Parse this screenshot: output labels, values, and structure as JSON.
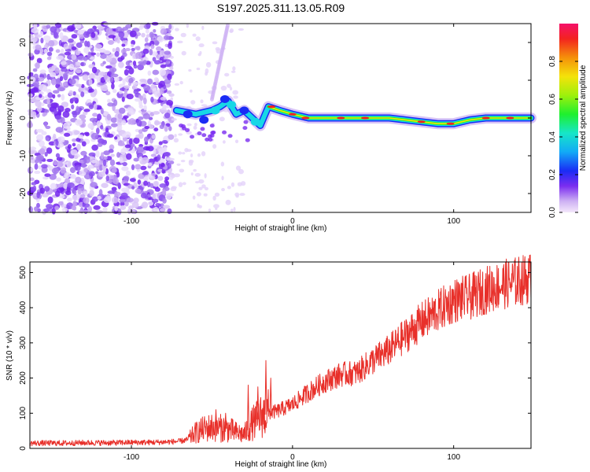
{
  "title": "S197.2025.311.13.05.R09",
  "chart_data": [
    {
      "type": "heatmap",
      "xlabel": "Height of straight line (km)",
      "ylabel": "Frequency (Hz)",
      "xlim": [
        -163,
        148
      ],
      "ylim": [
        -25,
        25
      ],
      "xticks": [
        -100,
        0,
        100
      ],
      "yticks": [
        -20,
        -10,
        0,
        10,
        20
      ],
      "colorbar": {
        "label": "Normalized spectral amplitude",
        "range": [
          0.0,
          1.0
        ],
        "ticks": [
          0.0,
          0.2,
          0.4,
          0.6,
          0.8
        ]
      },
      "features": [
        {
          "name": "noise region",
          "x_range": [
            -163,
            -75
          ],
          "freq_range": [
            -25,
            25
          ],
          "amplitude": 0.1
        },
        {
          "name": "signal trace",
          "freq_path": [
            [
              -72,
              2
            ],
            [
              -60,
              1
            ],
            [
              -50,
              2
            ],
            [
              -45,
              3
            ],
            [
              -40,
              4.5
            ],
            [
              -35,
              1
            ],
            [
              -30,
              2
            ],
            [
              -25,
              0
            ],
            [
              -20,
              -2
            ],
            [
              -15,
              3
            ],
            [
              -8,
              2
            ],
            [
              0,
              1
            ],
            [
              10,
              0
            ],
            [
              30,
              0
            ],
            [
              60,
              0
            ],
            [
              80,
              -1
            ],
            [
              90,
              -1.5
            ],
            [
              100,
              -1.5
            ],
            [
              110,
              -0.5
            ],
            [
              120,
              0
            ],
            [
              148,
              0
            ]
          ]
        }
      ]
    },
    {
      "type": "line",
      "xlabel": "Height of straight line (km)",
      "ylabel": "SNR (10 * v/v)",
      "xlim": [
        -163,
        148
      ],
      "ylim": [
        0,
        530
      ],
      "xticks": [
        -100,
        0,
        100
      ],
      "yticks": [
        0,
        100,
        200,
        300,
        400,
        500
      ],
      "color": "#e8302a",
      "series": [
        {
          "name": "SNR",
          "x": [
            -163,
            -150,
            -140,
            -130,
            -120,
            -110,
            -100,
            -90,
            -80,
            -70,
            -65,
            -60,
            -55,
            -50,
            -45,
            -40,
            -35,
            -30,
            -25,
            -20,
            -15,
            -10,
            -5,
            0,
            10,
            20,
            30,
            40,
            50,
            60,
            70,
            80,
            90,
            100,
            110,
            120,
            130,
            140,
            148
          ],
          "y": [
            15,
            15,
            15,
            16,
            16,
            16,
            17,
            17,
            18,
            20,
            25,
            45,
            55,
            60,
            58,
            55,
            45,
            40,
            70,
            90,
            100,
            105,
            115,
            125,
            160,
            190,
            210,
            215,
            250,
            280,
            320,
            360,
            390,
            420,
            430,
            450,
            465,
            475,
            485
          ],
          "spikes": [
            [
              -48,
              110
            ],
            [
              -42,
              100
            ],
            [
              -28,
              180
            ],
            [
              -22,
              175
            ],
            [
              -17,
              250
            ],
            [
              -14,
              200
            ]
          ]
        }
      ]
    }
  ]
}
